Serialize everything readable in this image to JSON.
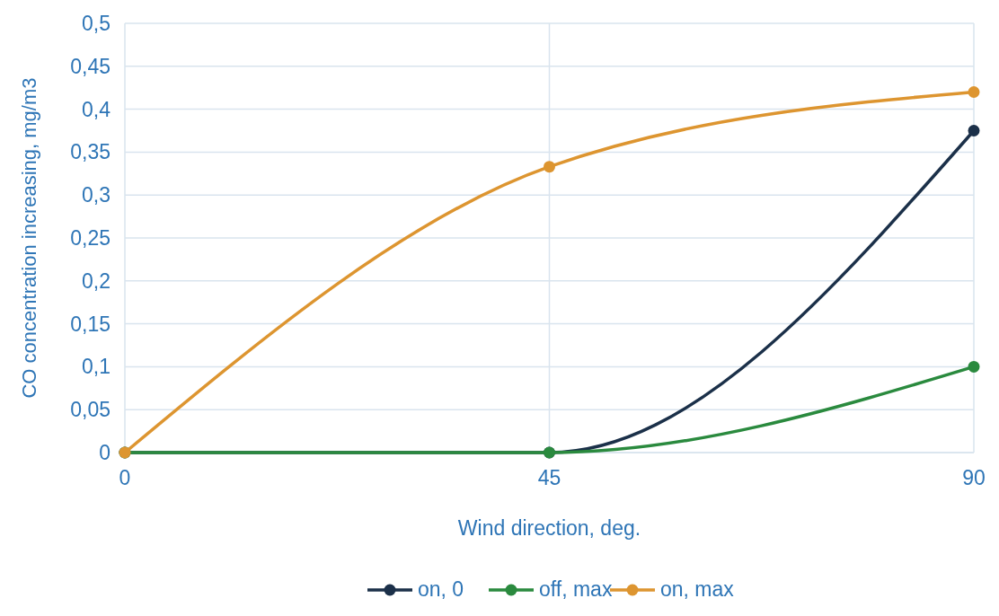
{
  "chart_data": {
    "type": "line",
    "xlabel": "Wind direction, deg.",
    "ylabel": "CO concentration increasing, mg/m3",
    "x": [
      0,
      45,
      90
    ],
    "series": [
      {
        "name": "on, 0",
        "color": "#1b3049",
        "values": [
          0,
          0,
          0.375
        ]
      },
      {
        "name": "off, max",
        "color": "#2a8a3e",
        "values": [
          0,
          0,
          0.1
        ]
      },
      {
        "name": "on, max",
        "color": "#dd9530",
        "values": [
          0,
          0.333,
          0.42
        ]
      }
    ],
    "xlim": [
      0,
      90
    ],
    "xticks": [
      0,
      45,
      90
    ],
    "ylim": [
      0,
      0.5
    ],
    "yticks": [
      0,
      {
        "value": 0.05,
        "label": "0,05"
      },
      {
        "value": 0.1,
        "label": "0,1"
      },
      {
        "value": 0.15,
        "label": "0,15"
      },
      {
        "value": 0.2,
        "label": "0,2"
      },
      {
        "value": 0.25,
        "label": "0,25"
      },
      {
        "value": 0.3,
        "label": "0,3"
      },
      {
        "value": 0.35,
        "label": "0,35"
      },
      {
        "value": 0.4,
        "label": "0,4"
      },
      {
        "value": 0.45,
        "label": "0,45"
      },
      {
        "value": 0.5,
        "label": "0,5"
      }
    ],
    "grid": true,
    "legend": "bottom",
    "marker": "circle",
    "line_style": "solid"
  }
}
